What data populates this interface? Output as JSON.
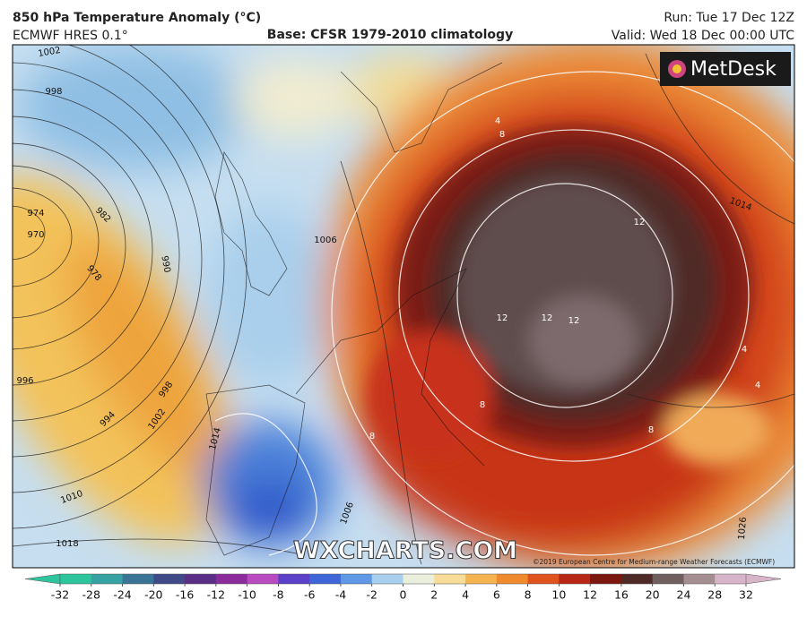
{
  "header": {
    "title": "850 hPa Temperature Anomaly (°C)",
    "model": "ECMWF HRES 0.1°",
    "base": "Base: CFSR 1979-2010 climatology",
    "run": "Run: Tue 17 Dec 12Z",
    "valid": "Valid: Wed 18 Dec 00:00 UTC"
  },
  "map": {
    "logo": "MetDesk",
    "watermark": "WXCHARTS.COM",
    "copyright": "©2019 European Centre for Medium-range Weather Forecasts (ECMWF)",
    "isobar_labels": [
      "1002",
      "998",
      "974",
      "970",
      "982",
      "978",
      "990",
      "996",
      "994",
      "998",
      "1002",
      "1010",
      "1014",
      "1018",
      "1006",
      "1006",
      "1014",
      "1026"
    ],
    "anomaly_labels": [
      "8",
      "4",
      "12",
      "12",
      "12",
      "12",
      "8",
      "8",
      "8",
      "4",
      "4"
    ]
  },
  "colorbar": {
    "ticks": [
      -32,
      -28,
      -24,
      -20,
      -16,
      -12,
      -10,
      -8,
      -6,
      -4,
      -2,
      0,
      2,
      4,
      6,
      8,
      10,
      12,
      16,
      20,
      24,
      28,
      32
    ],
    "colors": [
      "#2cc59c",
      "#36a3a2",
      "#3a7596",
      "#3f4a86",
      "#5b2e86",
      "#8a2c9c",
      "#b84bbf",
      "#5a3fc8",
      "#3f66d8",
      "#5f98e6",
      "#a8d0ee",
      "#eaeedc",
      "#f6dc96",
      "#f5b451",
      "#ef8a2e",
      "#e0531f",
      "#b82716",
      "#7c170f",
      "#4e2a26",
      "#6f5f5f",
      "#a58e92",
      "#d8b4c8"
    ]
  }
}
